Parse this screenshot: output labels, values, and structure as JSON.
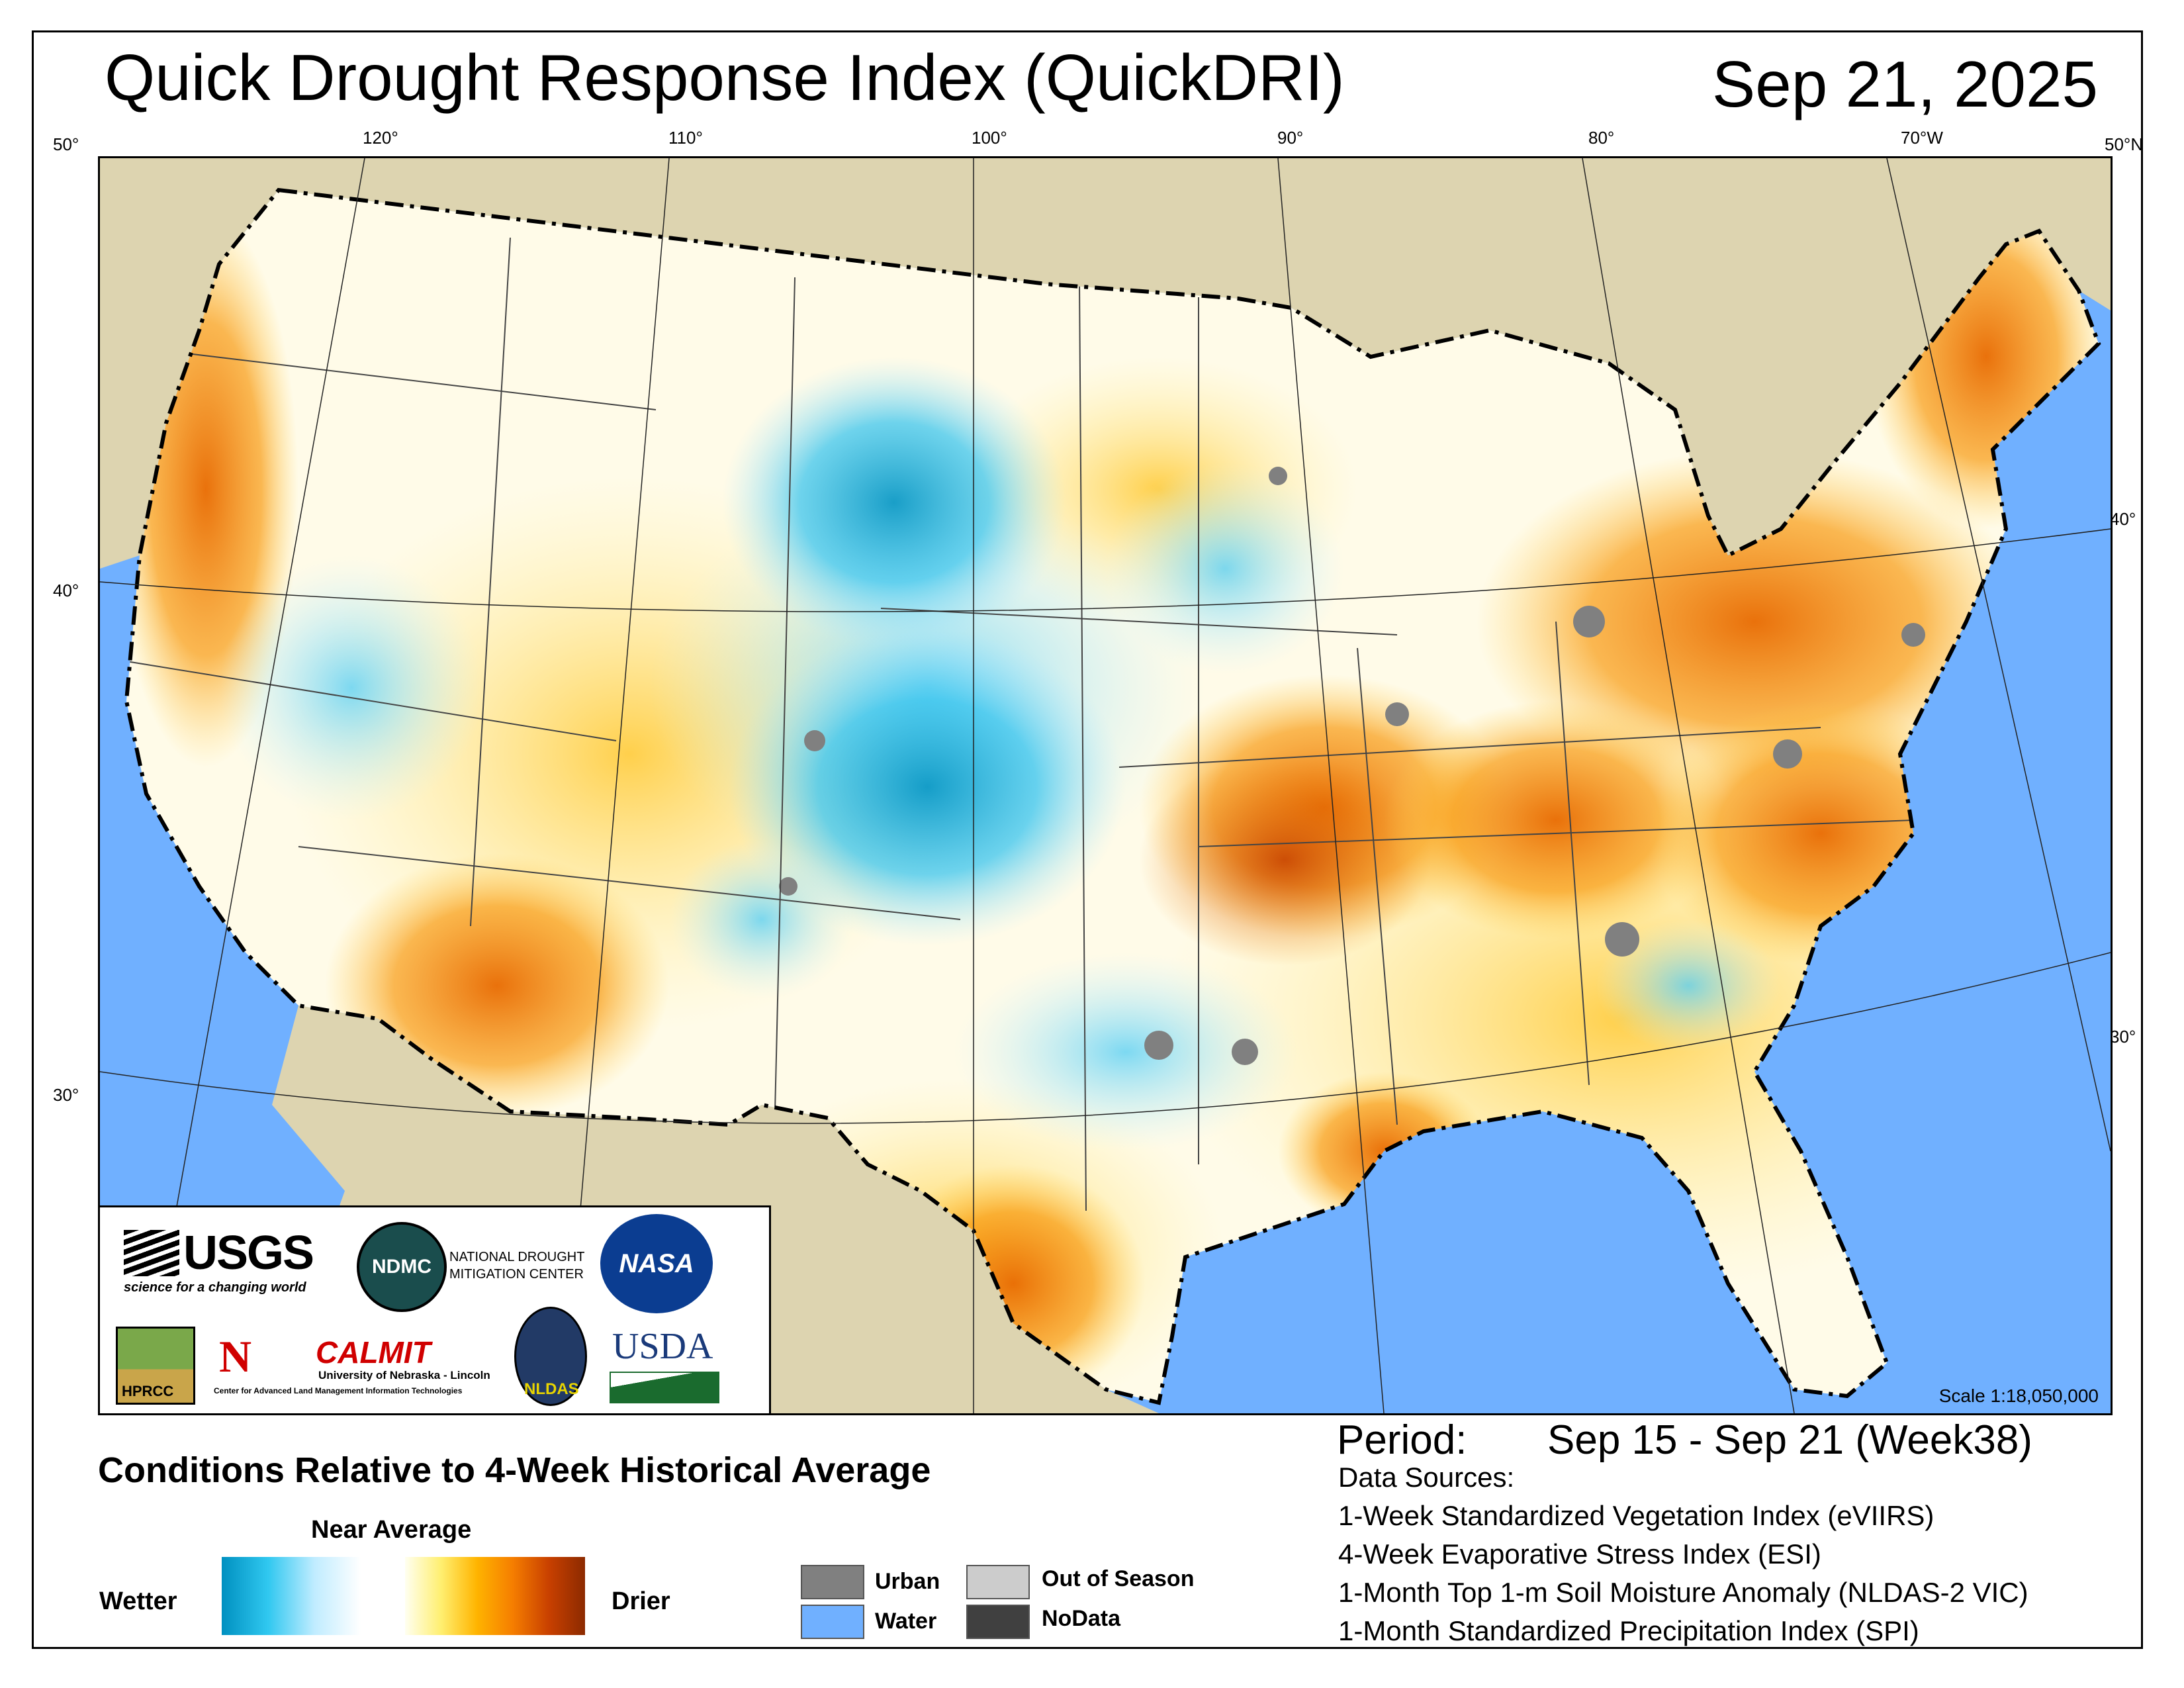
{
  "header": {
    "title": "Quick Drought Response Index (QuickDRI)",
    "date": "Sep 21, 2025"
  },
  "graticule": {
    "top_longitudes": [
      "120°",
      "110°",
      "100°",
      "90°",
      "80°",
      "70°W"
    ],
    "left_latitudes": [
      "50°",
      "40°",
      "30°"
    ],
    "right_latitudes": [
      "50°N",
      "40°",
      "30°"
    ]
  },
  "map": {
    "scale": "Scale 1:18,050,000",
    "colors": {
      "water": "#70b0ff",
      "land_outside_us": "#ddd4b0",
      "near_average": "#ffffff",
      "urban": "#808080",
      "out_of_season": "#cccccc",
      "nodata": "#404040"
    }
  },
  "logos": {
    "usgs": "USGS",
    "usgs_tagline": "science for a changing world",
    "ndmc": "NDMC",
    "ndmc_name": [
      "NATIONAL DROUGHT",
      "MITIGATION CENTER"
    ],
    "nasa": "NASA",
    "hprcc": "HPRCC",
    "unl_mark": "N",
    "calmit": "CALMIT",
    "calmit_univ": "University of Nebraska - Lincoln",
    "calmit_center": "Center for Advanced Land Management Information Technologies",
    "nldas": "NLDAS",
    "usda": "USDA"
  },
  "legend": {
    "title": "Conditions Relative to 4-Week Historical Average",
    "near_average": "Near Average",
    "wetter": "Wetter",
    "drier": "Drier",
    "wet_ramp": [
      "#0090c0",
      "#30c8f0",
      "#c0ecff",
      "#ffffff"
    ],
    "dry_ramp": [
      "#fffff0",
      "#ffef70",
      "#ffb400",
      "#f57d00",
      "#c84000",
      "#8c2a00"
    ],
    "swatches": [
      {
        "label": "Urban",
        "color": "#808080"
      },
      {
        "label": "Water",
        "color": "#70b0ff"
      },
      {
        "label": "Out of Season",
        "color": "#cccccc"
      },
      {
        "label": "NoData",
        "color": "#404040"
      }
    ]
  },
  "info": {
    "period_label": "Period:",
    "period_value": "Sep 15 - Sep 21 (Week38)",
    "sources_title": "Data Sources:",
    "sources": [
      "1-Week Standardized Vegetation Index (eVIIRS)",
      "4-Week Evaporative Stress Index (ESI)",
      "1-Month Top 1-m Soil Moisture Anomaly (NLDAS-2 VIC)",
      "1-Month Standardized Precipitation Index (SPI)"
    ]
  }
}
